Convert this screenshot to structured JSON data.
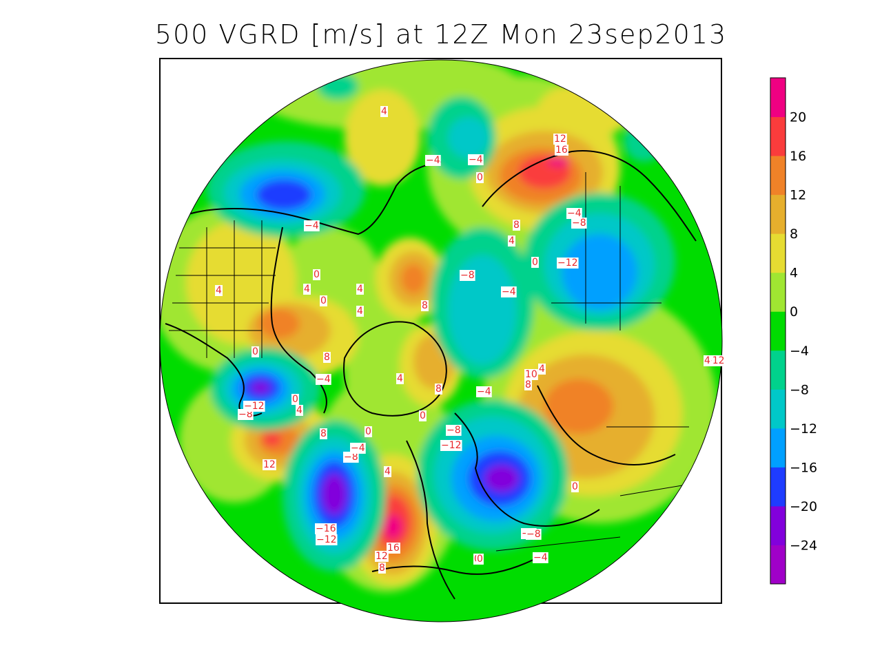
{
  "title": "500 VGRD [m/s] at 12Z Mon 23sep2013",
  "colorbar": {
    "levels": [
      "20",
      "16",
      "12",
      "8",
      "4",
      "0",
      "−4",
      "−8",
      "−12",
      "−16",
      "−20",
      "−24"
    ],
    "colors": [
      "#a000c8",
      "#8200dc",
      "#1e3cff",
      "#00a0ff",
      "#00c8c8",
      "#00d28c",
      "#00dc00",
      "#a0e632",
      "#e6dc32",
      "#e6af2d",
      "#f08228",
      "#fa3c3c",
      "#f00082"
    ]
  },
  "contour_labels": [
    "4",
    "−4",
    "−4",
    "0",
    "12",
    "16",
    "−4",
    "−4",
    "−8",
    "8",
    "4",
    "0",
    "−12",
    "−8",
    "−4",
    "8",
    "4",
    "0",
    "4",
    "4",
    "4",
    "0",
    "0",
    "8",
    "−4",
    "4",
    "8",
    "4",
    "0",
    "−4",
    "−8",
    "−12",
    "−8",
    "−12",
    "4",
    "10",
    "8",
    "0",
    "−12",
    "−8",
    "0",
    "4",
    "8",
    "0",
    "−4",
    "−8",
    "12",
    "4",
    "−16",
    "−12",
    "16",
    "12",
    "8",
    "0",
    "−8",
    "−4",
    "0"
  ]
}
